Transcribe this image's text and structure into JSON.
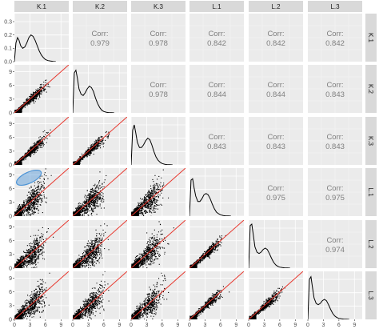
{
  "chart_data": {
    "type": "scatter-matrix",
    "variables": [
      "K.1",
      "K.2",
      "K.3",
      "L.1",
      "L.2",
      "L.3"
    ],
    "corr_label": "Corr:",
    "correlations": [
      {
        "row": "K.1",
        "col": "K.2",
        "value": "0.979"
      },
      {
        "row": "K.1",
        "col": "K.3",
        "value": "0.978"
      },
      {
        "row": "K.1",
        "col": "L.1",
        "value": "0.842"
      },
      {
        "row": "K.1",
        "col": "L.2",
        "value": "0.842"
      },
      {
        "row": "K.1",
        "col": "L.3",
        "value": "0.842"
      },
      {
        "row": "K.2",
        "col": "K.3",
        "value": "0.978"
      },
      {
        "row": "K.2",
        "col": "L.1",
        "value": "0.844"
      },
      {
        "row": "K.2",
        "col": "L.2",
        "value": "0.844"
      },
      {
        "row": "K.2",
        "col": "L.3",
        "value": "0.843"
      },
      {
        "row": "K.3",
        "col": "L.1",
        "value": "0.843"
      },
      {
        "row": "K.3",
        "col": "L.2",
        "value": "0.843"
      },
      {
        "row": "K.3",
        "col": "L.3",
        "value": "0.843"
      },
      {
        "row": "L.1",
        "col": "L.2",
        "value": "0.975"
      },
      {
        "row": "L.1",
        "col": "L.3",
        "value": "0.975"
      },
      {
        "row": "L.2",
        "col": "L.3",
        "value": "0.974"
      }
    ],
    "x_ticks": [
      "0",
      "3",
      "6",
      "9"
    ],
    "x_range": [
      0,
      10.5
    ],
    "scatter_y_ticks": [
      "0",
      "3",
      "6",
      "9"
    ],
    "density_y_ticks": [
      "0.0",
      "0.1",
      "0.2",
      "0.3"
    ],
    "density_y_range": [
      0,
      0.36
    ],
    "density_curves": [
      {
        "var": "K.1",
        "x": [
          0,
          0.3,
          0.6,
          0.9,
          1.2,
          1.6,
          2.0,
          2.4,
          2.8,
          3.2,
          3.6,
          4.0,
          4.4,
          4.8,
          5.2,
          5.6,
          6.0,
          6.5,
          7.0,
          7.5,
          8.0
        ],
        "y": [
          0.0,
          0.14,
          0.18,
          0.16,
          0.12,
          0.1,
          0.11,
          0.14,
          0.18,
          0.2,
          0.19,
          0.16,
          0.12,
          0.08,
          0.05,
          0.03,
          0.015,
          0.008,
          0.004,
          0.002,
          0.0
        ]
      },
      {
        "var": "K.2",
        "x": [
          0,
          0.3,
          0.6,
          0.9,
          1.2,
          1.6,
          2.0,
          2.4,
          2.8,
          3.2,
          3.6,
          4.0,
          4.4,
          4.8,
          5.2,
          5.6,
          6.0,
          6.5,
          7.0,
          7.5,
          8.0
        ],
        "y": [
          0.0,
          0.3,
          0.32,
          0.26,
          0.18,
          0.14,
          0.13,
          0.15,
          0.18,
          0.2,
          0.19,
          0.16,
          0.11,
          0.07,
          0.04,
          0.02,
          0.01,
          0.005,
          0.002,
          0.001,
          0.0
        ]
      },
      {
        "var": "K.3",
        "x": [
          0,
          0.3,
          0.6,
          0.9,
          1.2,
          1.6,
          2.0,
          2.4,
          2.8,
          3.2,
          3.6,
          4.0,
          4.4,
          4.8,
          5.2,
          5.6,
          6.0,
          6.5,
          7.0,
          7.5,
          8.0
        ],
        "y": [
          0.0,
          0.26,
          0.3,
          0.24,
          0.17,
          0.13,
          0.13,
          0.15,
          0.18,
          0.2,
          0.19,
          0.15,
          0.1,
          0.06,
          0.035,
          0.02,
          0.01,
          0.005,
          0.002,
          0.001,
          0.0
        ]
      },
      {
        "var": "L.1",
        "x": [
          0,
          0.3,
          0.6,
          0.9,
          1.2,
          1.6,
          2.0,
          2.4,
          2.8,
          3.2,
          3.6,
          4.0,
          4.4,
          4.8,
          5.2,
          5.6,
          6.0,
          6.5,
          7.0,
          7.5,
          8.0
        ],
        "y": [
          0.0,
          0.27,
          0.28,
          0.21,
          0.15,
          0.11,
          0.11,
          0.13,
          0.16,
          0.17,
          0.16,
          0.13,
          0.09,
          0.055,
          0.03,
          0.018,
          0.01,
          0.005,
          0.002,
          0.001,
          0.0
        ]
      },
      {
        "var": "L.2",
        "x": [
          0,
          0.3,
          0.6,
          0.9,
          1.2,
          1.6,
          2.0,
          2.4,
          2.8,
          3.2,
          3.6,
          4.0,
          4.4,
          4.8,
          5.2,
          5.6,
          6.0,
          6.5,
          7.0,
          7.5,
          8.0
        ],
        "y": [
          0.0,
          0.32,
          0.33,
          0.25,
          0.16,
          0.12,
          0.11,
          0.12,
          0.14,
          0.15,
          0.14,
          0.11,
          0.075,
          0.045,
          0.025,
          0.014,
          0.008,
          0.004,
          0.002,
          0.001,
          0.0
        ]
      },
      {
        "var": "L.3",
        "x": [
          0,
          0.3,
          0.6,
          0.9,
          1.2,
          1.6,
          2.0,
          2.4,
          2.8,
          3.2,
          3.6,
          4.0,
          4.4,
          4.8,
          5.2,
          5.6,
          6.0,
          6.5,
          7.0,
          7.5,
          8.0
        ],
        "y": [
          0.0,
          0.3,
          0.32,
          0.24,
          0.16,
          0.12,
          0.11,
          0.12,
          0.14,
          0.15,
          0.14,
          0.11,
          0.075,
          0.045,
          0.025,
          0.014,
          0.008,
          0.004,
          0.002,
          0.001,
          0.0
        ]
      }
    ],
    "reference_line": {
      "slope": 1,
      "intercept": 0,
      "color": "#e8352b"
    },
    "highlight_ellipse": {
      "row": "L.1",
      "col": "K.1",
      "center": [
        2.8,
        8.4
      ],
      "radii": [
        2.6,
        1.2
      ],
      "angle_deg": 25,
      "color": "#4d94d6"
    },
    "grid": true,
    "colors": {
      "panel_bg": "#ebebeb",
      "grid": "#ffffff",
      "strip_bg": "#d9d9d9",
      "points": "#000000",
      "corr_text": "#7f7f7f",
      "density_line": "#000000"
    }
  }
}
